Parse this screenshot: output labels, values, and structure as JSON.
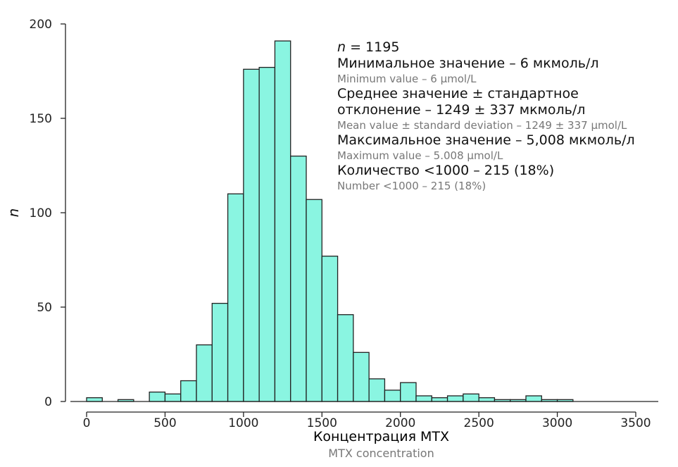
{
  "chart_data": {
    "type": "bar",
    "title": "",
    "xlabel": "Концентрация МТХ",
    "xlabel_en": "MTX concentration",
    "ylabel": "n",
    "xlim": [
      0,
      3500
    ],
    "ylim": [
      0,
      200
    ],
    "xticks": [
      "0",
      "500",
      "1000",
      "1500",
      "2000",
      "2500",
      "3000",
      "3500"
    ],
    "yticks": [
      "0",
      "50",
      "100",
      "150",
      "200"
    ],
    "bin_width": 100,
    "bin_starts": [
      0,
      100,
      200,
      300,
      400,
      500,
      600,
      700,
      800,
      900,
      1000,
      1100,
      1200,
      1300,
      1400,
      1500,
      1600,
      1700,
      1800,
      1900,
      2000,
      2100,
      2200,
      2300,
      2400,
      2500,
      2600,
      2700,
      2800,
      2900,
      3000
    ],
    "values": [
      2,
      0,
      1,
      0,
      5,
      4,
      11,
      30,
      52,
      110,
      176,
      177,
      191,
      130,
      107,
      77,
      46,
      26,
      12,
      6,
      10,
      3,
      2,
      3,
      4,
      2,
      1,
      1,
      3,
      1,
      1
    ],
    "bar_color": "#8af5e1",
    "annotations": [
      {
        "ru": "n = 1195"
      },
      {
        "ru": "Минимальное значение – 6 мкмоль/л",
        "en": "Minimum value – 6 µmol/L"
      },
      {
        "ru": "Среднее значение ± стандартное",
        "ru2": "отклонение – 1249 ± 337 мкмоль/л",
        "en": "Mean value ± standard deviation – 1249 ± 337 µmol/L"
      },
      {
        "ru": "Максимальное значение – 5,008 мкмоль/л",
        "en": "Maximum value – 5.008 µmol/L"
      },
      {
        "ru": "Количество <1000 – 215 (18%)",
        "en": "Number <1000 – 215 (18%)"
      }
    ]
  }
}
